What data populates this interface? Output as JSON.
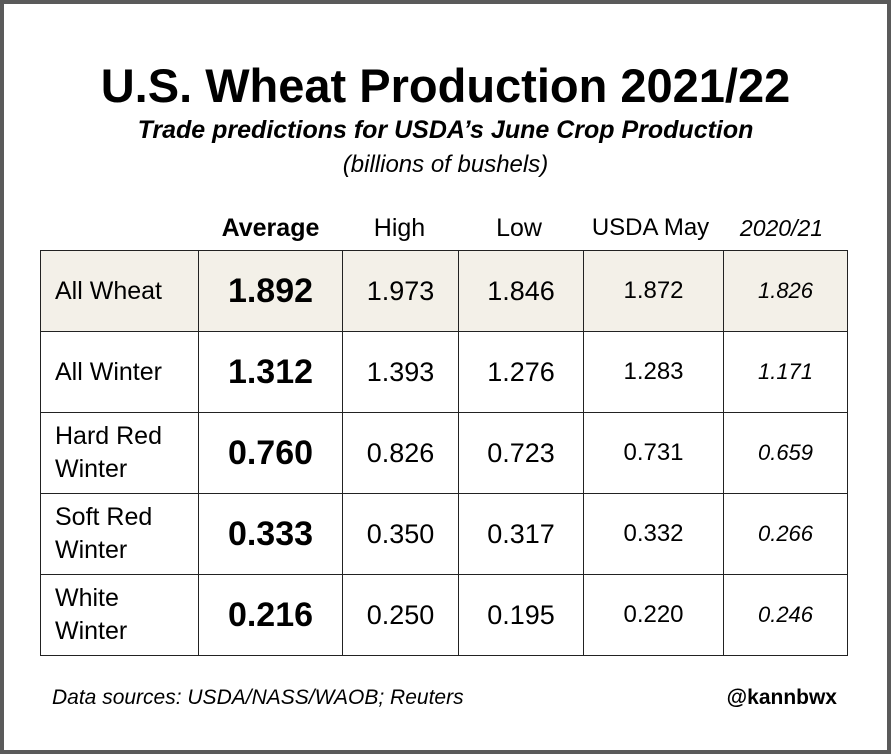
{
  "chart_data": {
    "type": "table",
    "title": "U.S. Wheat Production 2021/22",
    "subtitle": "Trade predictions for USDA’s June Crop Production",
    "units": "(billions of bushels)",
    "columns": [
      "Average",
      "High",
      "Low",
      "USDA May",
      "2020/21"
    ],
    "rows": [
      {
        "label": "All Wheat",
        "values": [
          "1.892",
          "1.973",
          "1.846",
          "1.872",
          "1.826"
        ],
        "highlight": true
      },
      {
        "label": "All Winter",
        "values": [
          "1.312",
          "1.393",
          "1.276",
          "1.283",
          "1.171"
        ],
        "highlight": false
      },
      {
        "label": "Hard Red Winter",
        "values": [
          "0.760",
          "0.826",
          "0.723",
          "0.731",
          "0.659"
        ],
        "highlight": false
      },
      {
        "label": "Soft Red Winter",
        "values": [
          "0.333",
          "0.350",
          "0.317",
          "0.332",
          "0.266"
        ],
        "highlight": false
      },
      {
        "label": "White Winter",
        "values": [
          "0.216",
          "0.250",
          "0.195",
          "0.220",
          "0.246"
        ],
        "highlight": false
      }
    ],
    "source": "Data sources: USDA/NASS/WAOB; Reuters",
    "handle": "@kannbwx"
  }
}
